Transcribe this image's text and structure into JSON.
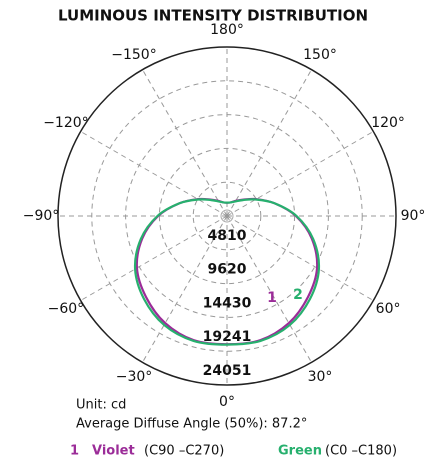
{
  "chart_data": {
    "type": "polar",
    "title": "LUMINOUS INTENSITY DISTRIBUTION",
    "x": [
      -180,
      -165,
      -150,
      -135,
      -120,
      -105,
      -90,
      -75,
      -60,
      -45,
      -30,
      -15,
      0,
      15,
      30,
      45,
      60,
      75,
      90,
      105,
      120,
      135,
      150,
      165,
      180
    ],
    "series": [
      {
        "name": "Violet",
        "marker": "1",
        "subtitle": "(C90 –C270)",
        "color": "#9b2c98",
        "values": [
          1900,
          2000,
          2500,
          3300,
          4800,
          7000,
          9800,
          12500,
          14800,
          16300,
          17600,
          18300,
          18250,
          18300,
          17600,
          16300,
          14800,
          12500,
          9800,
          7000,
          4800,
          3300,
          2500,
          2000,
          1900
        ]
      },
      {
        "name": "Green",
        "marker": "2",
        "subtitle": "(C0 –C180)",
        "color": "#27b06e",
        "values": [
          1900,
          2000,
          2400,
          3200,
          4700,
          7000,
          9900,
          12700,
          15100,
          16700,
          17900,
          18400,
          18300,
          18400,
          17900,
          16700,
          15100,
          12700,
          9900,
          7000,
          4700,
          3200,
          2400,
          2000,
          1900
        ]
      }
    ],
    "rlim": [
      0,
      24051
    ],
    "rticks": [
      4810,
      9620,
      14430,
      19241,
      24051
    ],
    "angle_ticks": [
      {
        "value": 180,
        "label": "180°"
      },
      {
        "value": -150,
        "label": "−150°"
      },
      {
        "value": 150,
        "label": "150°"
      },
      {
        "value": -120,
        "label": "−120°"
      },
      {
        "value": 120,
        "label": "120°"
      },
      {
        "value": -90,
        "label": "−90°"
      },
      {
        "value": 90,
        "label": "90°"
      },
      {
        "value": -60,
        "label": "−60°"
      },
      {
        "value": 60,
        "label": "60°"
      },
      {
        "value": -30,
        "label": "−30°"
      },
      {
        "value": 30,
        "label": "30°"
      },
      {
        "value": 0,
        "label": "0°"
      }
    ],
    "unit": "Unit: cd",
    "average_angle": "Average Diffuse Angle (50%): 87.2°"
  }
}
